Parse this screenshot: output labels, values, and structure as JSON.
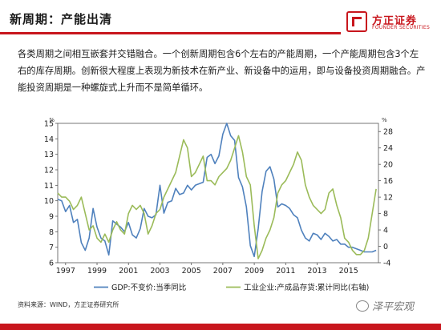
{
  "slide": {
    "title": "新周期：产能出清",
    "body": "各类周期之间相互嵌套并交错融合。一个创新周期包含6个左右的产能周期，一个产能周期包含3个左右的库存周期。创新很大程度上表现为新技术在新产业、新设备中的运用，即与设备投资周期融合。产能投资周期是一种螺旋式上升而不是简单循环。",
    "source": "资料来源：WIND，方正证券研究所",
    "watermark": "泽平宏观"
  },
  "logo": {
    "cn": "方正证券",
    "en": "FOUNDER SECURITIES",
    "color": "#c8161d"
  },
  "chart_data": {
    "type": "line",
    "left_unit": "%",
    "right_unit": "%",
    "left_ylim": [
      6,
      15
    ],
    "right_ylim": [
      -4,
      30
    ],
    "left_ticks": [
      6,
      7,
      8,
      9,
      10,
      11,
      12,
      13,
      14,
      15
    ],
    "right_ticks": [
      -4,
      0,
      4,
      8,
      12,
      16,
      20,
      24,
      28
    ],
    "xlim": [
      1996.5,
      2016.9
    ],
    "x_ticks": [
      1997,
      1999,
      2001,
      2003,
      2005,
      2007,
      2009,
      2011,
      2013,
      2015
    ],
    "series": [
      {
        "name": "GDP:不变价:当季同比",
        "axis": "left",
        "color": "#4f81bd",
        "x": [
          1996.5,
          1996.75,
          1997,
          1997.25,
          1997.5,
          1997.75,
          1998,
          1998.25,
          1998.5,
          1998.75,
          1999,
          1999.25,
          1999.5,
          1999.75,
          2000,
          2000.25,
          2000.5,
          2000.75,
          2001,
          2001.25,
          2001.5,
          2001.75,
          2002,
          2002.25,
          2002.5,
          2002.75,
          2003,
          2003.25,
          2003.5,
          2003.75,
          2004,
          2004.25,
          2004.5,
          2004.75,
          2005,
          2005.25,
          2005.5,
          2005.75,
          2006,
          2006.25,
          2006.5,
          2006.75,
          2007,
          2007.25,
          2007.5,
          2007.75,
          2008,
          2008.25,
          2008.5,
          2008.75,
          2009,
          2009.25,
          2009.5,
          2009.75,
          2010,
          2010.25,
          2010.5,
          2010.75,
          2011,
          2011.25,
          2011.5,
          2011.75,
          2012,
          2012.25,
          2012.5,
          2012.75,
          2013,
          2013.25,
          2013.5,
          2013.75,
          2014,
          2014.25,
          2014.5,
          2014.75,
          2015,
          2015.25,
          2015.5,
          2015.75,
          2016,
          2016.25,
          2016.5,
          2016.75
        ],
        "values": [
          10.1,
          10.0,
          9.3,
          9.7,
          8.6,
          8.8,
          7.3,
          6.8,
          7.6,
          9.5,
          8.3,
          7.6,
          7.4,
          6.5,
          8.7,
          8.5,
          8.3,
          8.0,
          8.6,
          7.8,
          7.6,
          8.2,
          9.5,
          9.0,
          8.9,
          9.1,
          11.0,
          9.2,
          9.9,
          10.0,
          10.8,
          10.4,
          10.5,
          11.0,
          10.7,
          11.0,
          11.1,
          11.2,
          12.8,
          13.0,
          12.4,
          12.9,
          14.3,
          15.0,
          14.2,
          13.9,
          11.5,
          10.9,
          9.6,
          7.1,
          6.4,
          8.2,
          10.6,
          11.9,
          12.2,
          11.4,
          9.6,
          9.8,
          9.7,
          9.5,
          9.1,
          8.9,
          8.1,
          7.6,
          7.4,
          7.9,
          7.8,
          7.5,
          7.9,
          7.7,
          7.4,
          7.5,
          7.2,
          7.2,
          7.0,
          7.0,
          6.9,
          6.8,
          6.7,
          6.7,
          6.7,
          6.8
        ]
      },
      {
        "name": "工业企业:产成品存货:累计同比(右轴)",
        "axis": "right",
        "color": "#9bbb59",
        "x": [
          1996.5,
          1996.75,
          1997,
          1997.25,
          1997.5,
          1997.75,
          1998,
          1998.25,
          1998.5,
          1998.75,
          1999,
          1999.25,
          1999.5,
          1999.75,
          2000,
          2000.25,
          2000.5,
          2000.75,
          2001,
          2001.25,
          2001.5,
          2001.75,
          2002,
          2002.25,
          2002.5,
          2002.75,
          2003,
          2003.25,
          2003.5,
          2003.75,
          2004,
          2004.25,
          2004.5,
          2004.75,
          2005,
          2005.25,
          2005.5,
          2005.75,
          2006,
          2006.25,
          2006.5,
          2006.75,
          2007,
          2007.25,
          2007.5,
          2007.75,
          2008,
          2008.25,
          2008.5,
          2008.75,
          2009,
          2009.25,
          2009.5,
          2009.75,
          2010,
          2010.25,
          2010.5,
          2010.75,
          2011,
          2011.25,
          2011.5,
          2011.75,
          2012,
          2012.25,
          2012.5,
          2012.75,
          2013,
          2013.25,
          2013.5,
          2013.75,
          2014,
          2014.25,
          2014.5,
          2014.75,
          2015,
          2015.25,
          2015.5,
          2015.75,
          2016,
          2016.25,
          2016.5,
          2016.75
        ],
        "values": [
          13,
          12,
          12,
          11,
          9,
          10,
          12,
          8,
          4,
          5,
          2,
          1,
          3,
          1,
          4,
          6,
          4,
          3,
          8,
          10,
          9,
          10,
          8,
          3,
          5,
          8,
          9,
          12,
          14,
          16,
          18,
          22,
          26,
          24,
          17,
          18,
          20,
          22,
          16,
          16,
          15,
          17,
          18,
          19,
          21,
          24,
          27,
          23,
          17,
          15,
          5,
          -3,
          -1,
          2,
          4,
          7,
          13,
          15,
          16,
          18,
          20,
          23,
          21,
          15,
          12,
          10,
          9,
          8,
          9,
          13,
          14,
          10,
          7,
          2,
          1,
          -1,
          -2,
          -2,
          -1,
          2,
          8,
          14
        ]
      }
    ]
  }
}
